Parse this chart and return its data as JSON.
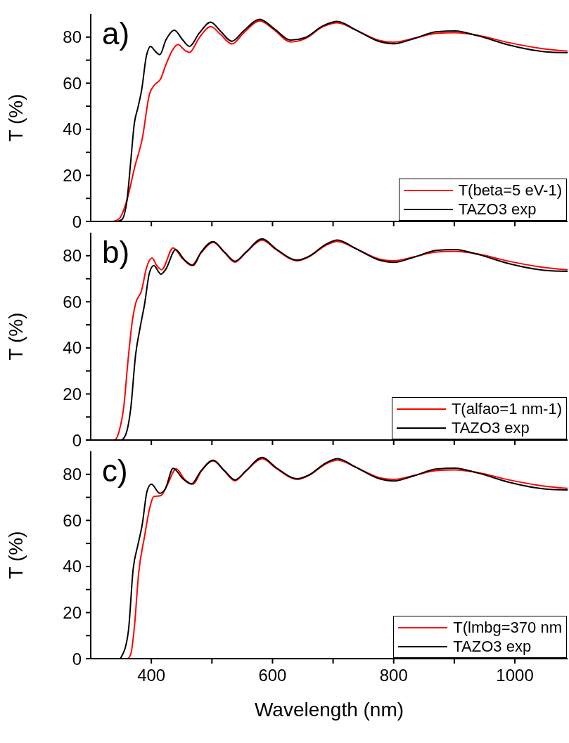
{
  "chart_data": [
    {
      "type": "line",
      "annotations": [
        "a)"
      ],
      "ylabel": "T (%)",
      "xlim": [
        300,
        1087
      ],
      "xticks": [
        {
          "value": 400,
          "label": null
        },
        {
          "value": 500,
          "label": null
        },
        {
          "value": 600,
          "label": null
        },
        {
          "value": 700,
          "label": null
        },
        {
          "value": 800,
          "label": null
        },
        {
          "value": 900,
          "label": null
        },
        {
          "value": 1000,
          "label": null
        }
      ],
      "ylim": [
        0,
        90
      ],
      "yticks": [
        0,
        {
          "value": 10,
          "label": null
        },
        20,
        {
          "value": 30,
          "label": null
        },
        40,
        {
          "value": 50,
          "label": null
        },
        60,
        {
          "value": 70,
          "label": null
        },
        80
      ],
      "tick_labels": "y",
      "legend": "bottom right",
      "series": [
        {
          "name": "T(beta=5 eV-1)",
          "color": "#ff0000",
          "x": [
            300,
            335,
            347,
            360,
            373,
            385,
            397,
            405,
            415,
            424,
            436,
            444,
            455,
            463,
            479,
            498,
            514,
            533,
            552,
            579,
            603,
            630,
            653,
            684,
            707,
            738,
            777,
            800,
            835,
            870,
            901,
            940,
            990,
            1048,
            1087
          ],
          "values": [
            0,
            0,
            1.2,
            9.5,
            24,
            35.8,
            55.3,
            59.2,
            61.7,
            68,
            74.8,
            76.8,
            74.3,
            73.4,
            79.7,
            84.6,
            81.2,
            77,
            81.7,
            87,
            83.1,
            77.9,
            79.2,
            84.6,
            86.2,
            83,
            78.5,
            77.8,
            79.6,
            81.6,
            81.9,
            80.7,
            77.6,
            74.9,
            73.9
          ]
        },
        {
          "name": "TAZO3 exp",
          "color": "#000000",
          "x": [
            300,
            343,
            351,
            360,
            366,
            372,
            378,
            384,
            392,
            399,
            405,
            414,
            424,
            438,
            452,
            463,
            479,
            498,
            514,
            533,
            552,
            579,
            603,
            630,
            653,
            684,
            707,
            738,
            777,
            800,
            835,
            870,
            901,
            940,
            990,
            1048,
            1087
          ],
          "values": [
            0,
            0,
            0.7,
            9.5,
            26,
            42.6,
            49.5,
            57,
            72,
            76,
            74.3,
            72.4,
            78.7,
            83,
            78.7,
            76,
            81.7,
            86.5,
            82.6,
            78.2,
            82.6,
            87.7,
            83.6,
            78.7,
            79.7,
            85,
            86.8,
            83,
            78,
            77.1,
            79.5,
            82.3,
            82.7,
            80.5,
            76.6,
            73.7,
            73.2
          ]
        }
      ]
    },
    {
      "type": "line",
      "annotations": [
        "b)"
      ],
      "ylabel": "T (%)",
      "xlim": [
        300,
        1087
      ],
      "xticks": [
        {
          "value": 400,
          "label": null
        },
        {
          "value": 500,
          "label": null
        },
        {
          "value": 600,
          "label": null
        },
        {
          "value": 700,
          "label": null
        },
        {
          "value": 800,
          "label": null
        },
        {
          "value": 900,
          "label": null
        },
        {
          "value": 1000,
          "label": null
        }
      ],
      "ylim": [
        0,
        90
      ],
      "yticks": [
        0,
        {
          "value": 10,
          "label": null
        },
        20,
        {
          "value": 30,
          "label": null
        },
        40,
        {
          "value": 50,
          "label": null
        },
        60,
        {
          "value": 70,
          "label": null
        },
        80
      ],
      "tick_labels": "y",
      "legend": "bottom right",
      "series": [
        {
          "name": "T(alfao=1 nm-1)",
          "color": "#ff0000",
          "x": [
            300,
            339,
            347,
            355,
            361,
            369,
            374,
            384,
            392,
            401,
            409,
            417,
            436,
            452,
            466,
            482,
            502,
            521,
            538,
            556,
            583,
            606,
            641,
            660,
            688,
            707,
            738,
            777,
            800,
            835,
            870,
            901,
            940,
            990,
            1048,
            1087
          ],
          "values": [
            0,
            0,
            3.9,
            15.5,
            33,
            52.4,
            59.2,
            65,
            74.7,
            79,
            75.7,
            73.9,
            83.4,
            78.6,
            75.8,
            81.2,
            85.8,
            81.3,
            77.2,
            81.3,
            86.8,
            82.6,
            77.8,
            79.5,
            84.5,
            86.2,
            83,
            78.5,
            77.8,
            79.6,
            81.6,
            81.9,
            80.7,
            77.6,
            74.9,
            73.9
          ]
        },
        {
          "name": "TAZO3 exp",
          "color": "#000000",
          "x": [
            300,
            350,
            357,
            366,
            374,
            382,
            389,
            397,
            404,
            416,
            424,
            440,
            455,
            469,
            482,
            502,
            521,
            538,
            556,
            583,
            606,
            641,
            660,
            688,
            707,
            738,
            777,
            800,
            835,
            870,
            901,
            940,
            990,
            1048,
            1087
          ],
          "values": [
            0,
            0,
            1.9,
            13.6,
            36.9,
            49.5,
            59.2,
            72.7,
            75.7,
            72,
            74.2,
            82.6,
            78.1,
            75.8,
            81.5,
            86.1,
            81.5,
            77.6,
            81.5,
            87.3,
            82.9,
            78.1,
            79.7,
            84.9,
            86.8,
            83,
            78,
            77.1,
            79.5,
            82.3,
            82.7,
            80.5,
            76.6,
            73.7,
            73.2
          ]
        }
      ]
    },
    {
      "type": "line",
      "annotations": [
        "c)"
      ],
      "ylabel": "T (%)",
      "xlabel": "Wavelength (nm)",
      "xlim": [
        300,
        1087
      ],
      "xticks": [
        {
          "value": 400,
          "label": "400"
        },
        {
          "value": 500,
          "label": null
        },
        {
          "value": 600,
          "label": "600"
        },
        {
          "value": 700,
          "label": null
        },
        {
          "value": 800,
          "label": "800"
        },
        {
          "value": 900,
          "label": null
        },
        {
          "value": 1000,
          "label": "1000"
        }
      ],
      "ylim": [
        0,
        90
      ],
      "yticks": [
        0,
        {
          "value": 10,
          "label": null
        },
        20,
        {
          "value": 30,
          "label": null
        },
        40,
        {
          "value": 50,
          "label": null
        },
        60,
        {
          "value": 70,
          "label": null
        },
        80
      ],
      "legend": "bottom right",
      "series": [
        {
          "name": "T(lmbg=370 nm",
          "color": "#ff0000",
          "x": [
            300,
            360,
            366,
            372,
            379,
            389,
            397,
            404,
            416,
            426,
            441,
            455,
            469,
            482,
            502,
            521,
            538,
            556,
            583,
            606,
            641,
            660,
            688,
            707,
            738,
            777,
            800,
            835,
            870,
            901,
            940,
            990,
            1048,
            1087
          ],
          "values": [
            0,
            0,
            1.9,
            13.6,
            36.9,
            53.3,
            65,
            70.3,
            70.8,
            75.2,
            82.4,
            77.8,
            75.7,
            81.2,
            85.8,
            81.3,
            77.2,
            81.3,
            86.8,
            82.6,
            77.8,
            79.5,
            84.5,
            86.2,
            83,
            78.5,
            77.8,
            79.6,
            81.6,
            81.9,
            80.7,
            77.6,
            74.9,
            73.9
          ]
        },
        {
          "name": "TAZO3 exp",
          "color": "#000000",
          "x": [
            300,
            348,
            351,
            362,
            370,
            378,
            385,
            393,
            400,
            414,
            423,
            436,
            452,
            466,
            482,
            502,
            521,
            538,
            556,
            583,
            606,
            641,
            660,
            688,
            707,
            738,
            777,
            800,
            835,
            870,
            901,
            940,
            990,
            1048,
            1087
          ],
          "values": [
            0,
            0,
            1,
            11.6,
            38.8,
            49.5,
            58.2,
            72.7,
            75.7,
            71.8,
            73.7,
            82.6,
            78.1,
            75.8,
            81.5,
            86.1,
            81.5,
            77.6,
            81.5,
            87.3,
            82.9,
            78.1,
            79.7,
            84.9,
            86.8,
            83,
            78,
            77.1,
            79.5,
            82.3,
            82.7,
            80.5,
            76.6,
            73.7,
            73.2
          ]
        }
      ]
    }
  ]
}
